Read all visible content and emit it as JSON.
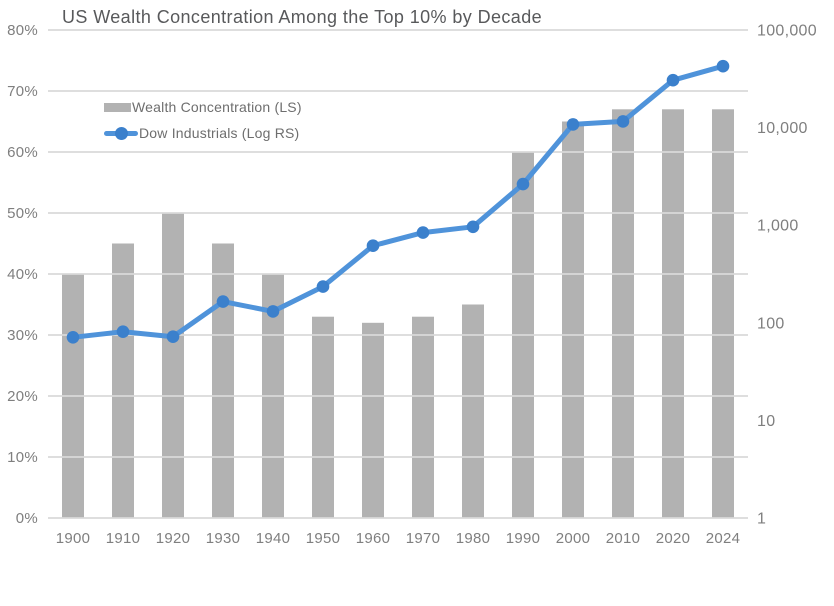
{
  "chart_data": {
    "type": "bar+line combo",
    "title": "US Wealth Concentration Among the Top 10% by Decade",
    "categories": [
      "1900",
      "1910",
      "1920",
      "1930",
      "1940",
      "1950",
      "1960",
      "1970",
      "1980",
      "1990",
      "2000",
      "2010",
      "2020",
      "2024"
    ],
    "series": [
      {
        "name": "Wealth Concentration (LS)",
        "type": "bar",
        "axis": "left",
        "unit": "percent",
        "values": [
          40,
          45,
          50,
          45,
          40,
          33,
          32,
          33,
          35,
          60,
          65,
          67,
          67,
          67
        ]
      },
      {
        "name": "Dow Industrials (Log RS)",
        "type": "line",
        "axis": "right-log",
        "values": [
          71,
          81,
          72,
          165,
          131,
          235,
          616,
          839,
          964,
          2634,
          10787,
          11578,
          30606,
          42544
        ]
      }
    ],
    "left_axis": {
      "min": 0,
      "max": 80,
      "step": 10,
      "ticks": [
        "0%",
        "10%",
        "20%",
        "30%",
        "40%",
        "50%",
        "60%",
        "70%",
        "80%"
      ]
    },
    "right_axis": {
      "scale": "log10",
      "min": 1,
      "max": 100000,
      "ticks": [
        "1",
        "10",
        "100",
        "1,000",
        "10,000",
        "100,000"
      ]
    },
    "grid": true,
    "legend_position": "inside-upper-left",
    "colors": {
      "bar": "#b2b2b2",
      "line": "#4f93da",
      "marker": "#3b80cc",
      "grid": "#d9d9d9",
      "axis_text": "#7f7f7f",
      "title_text": "#58595b",
      "legend_text": "#6e6e6e",
      "background": "#ffffff"
    }
  }
}
